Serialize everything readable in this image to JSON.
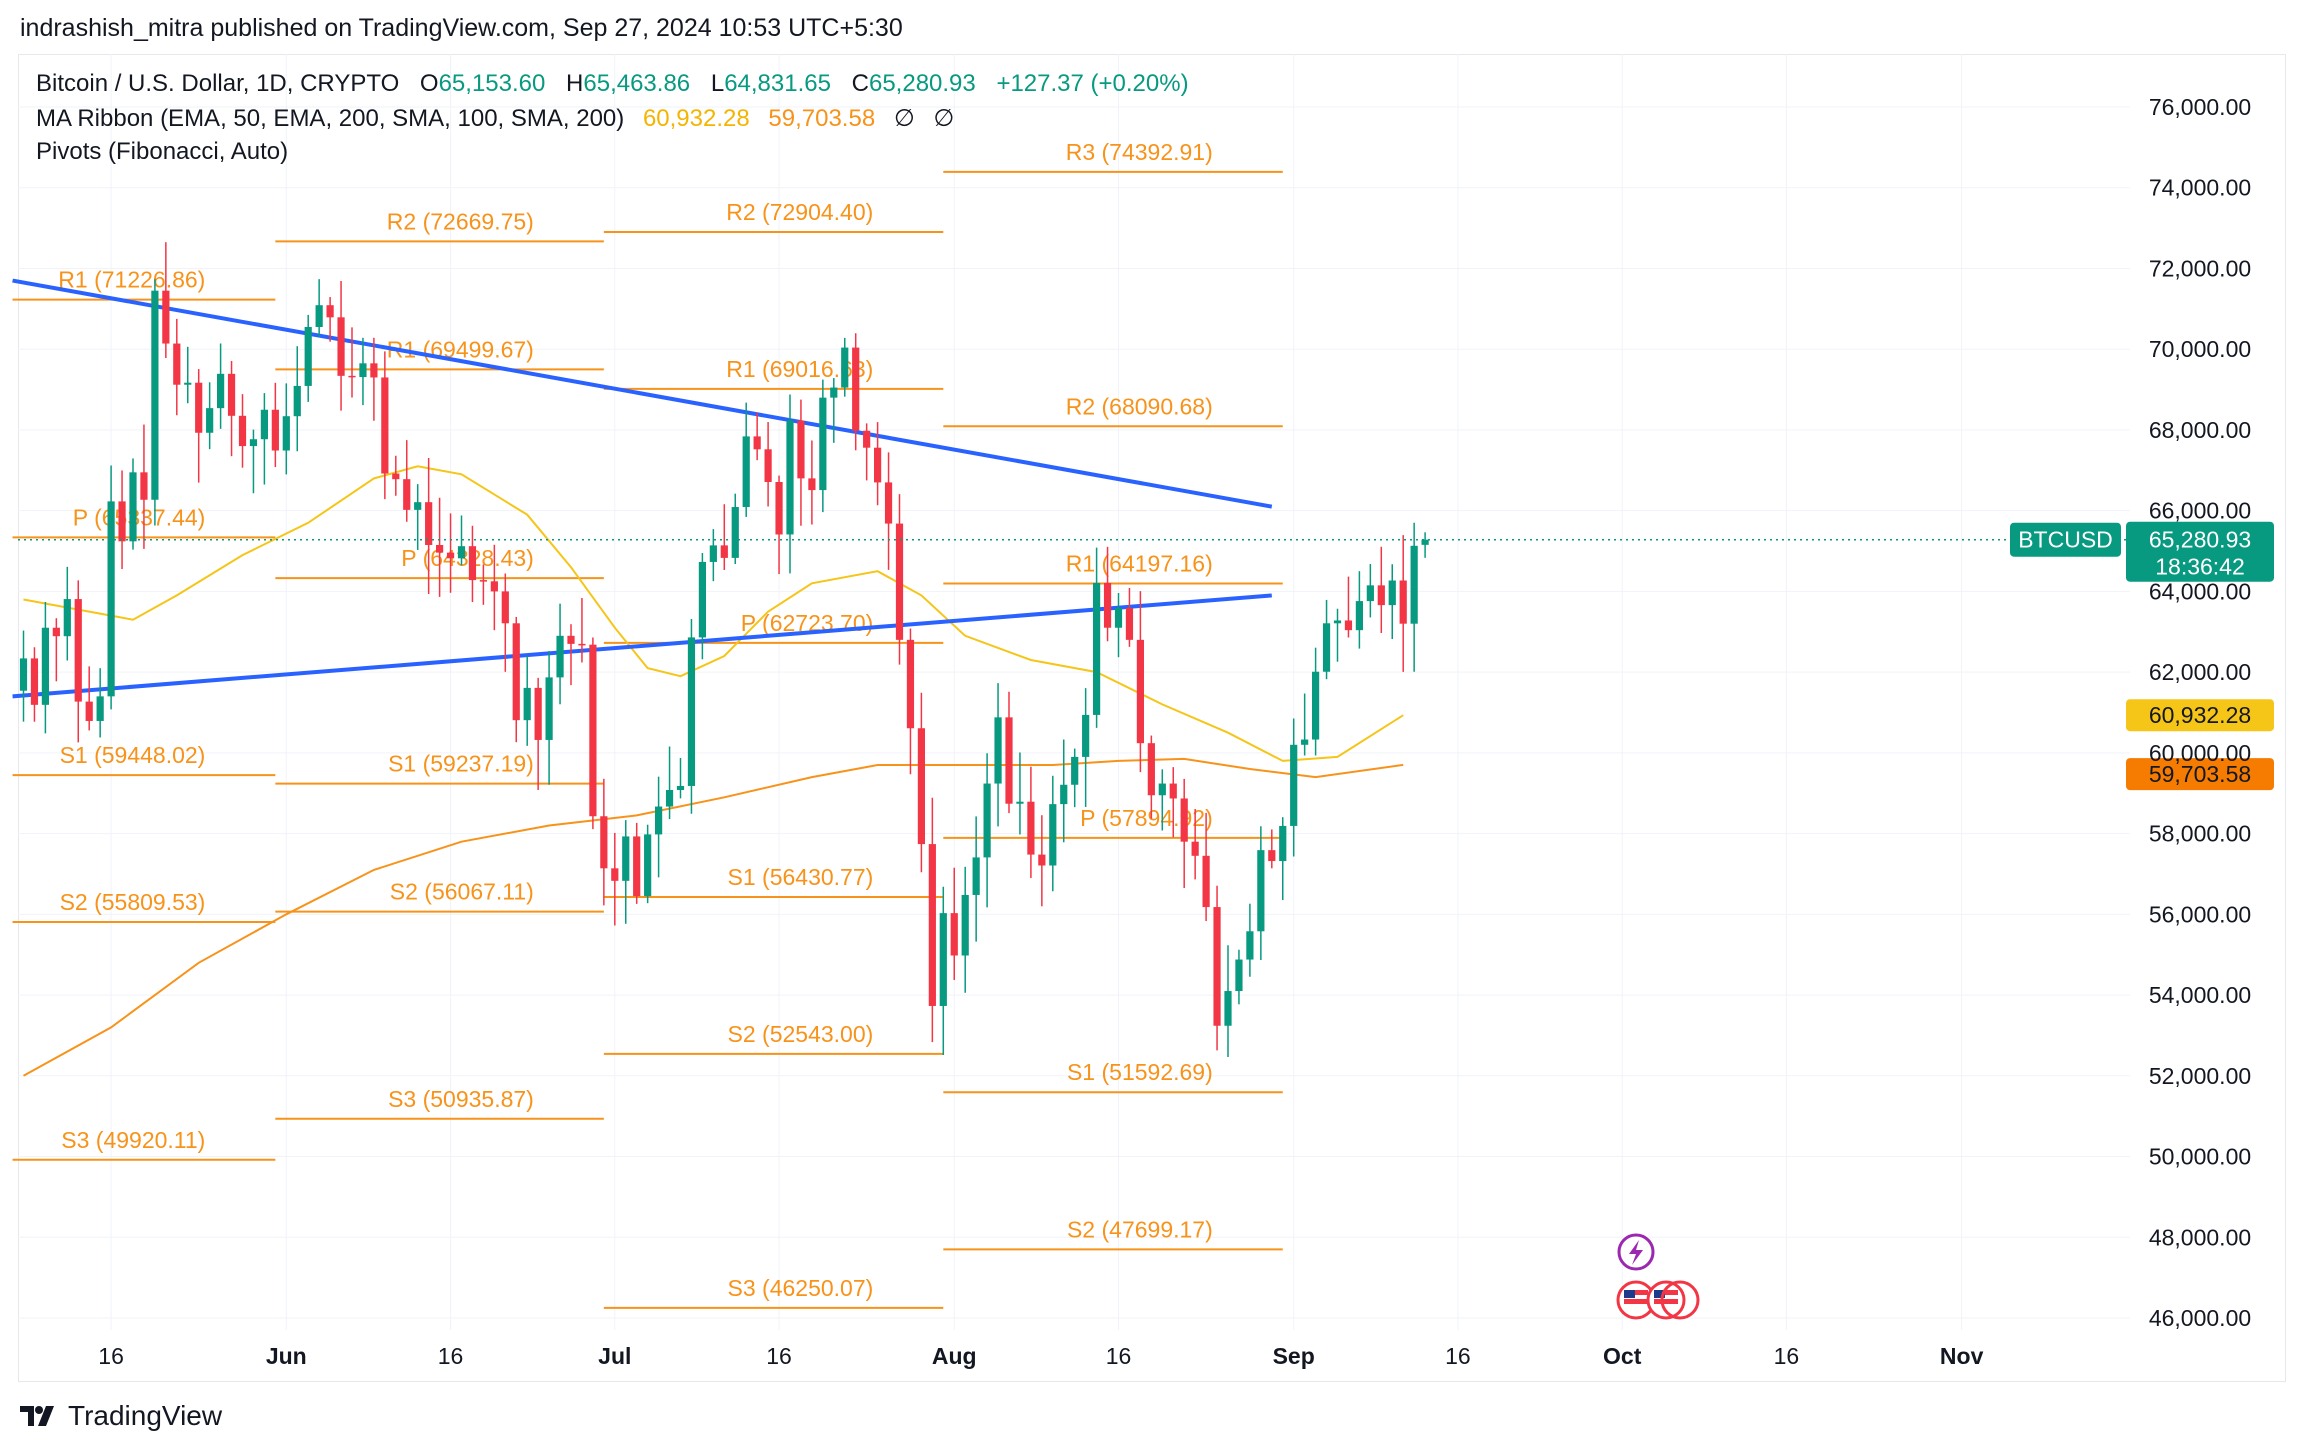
{
  "header": {
    "caption": "indrashish_mitra published on TradingView.com, Sep 27, 2024 10:53 UTC+5:30"
  },
  "legend": {
    "symbol": "Bitcoin / U.S. Dollar, 1D, CRYPTO",
    "o_label": "O",
    "o_value": "65,153.60",
    "h_label": "H",
    "h_value": "65,463.86",
    "l_label": "L",
    "l_value": "64,831.65",
    "c_label": "C",
    "c_value": "65,280.93",
    "change": "+127.37 (+0.20%)",
    "ma_title": "MA Ribbon (EMA, 50, EMA, 200, SMA, 100, SMA, 200)",
    "ma_value_1": "60,932.28",
    "ma_value_2": "59,703.58",
    "ma_hidden_1": "∅",
    "ma_hidden_2": "∅",
    "pivots_title": "Pivots (Fibonacci, Auto)"
  },
  "footer": {
    "brand": "TradingView"
  },
  "colors": {
    "up": "#089981",
    "down": "#f23645",
    "trendline": "#2962ff",
    "pivot": "#f7931a",
    "ema50": "#f5c518",
    "ema200": "#f7931a",
    "grid": "#f0f3fa"
  },
  "chart_data": {
    "type": "candlestick",
    "symbol": "BTCUSD",
    "timeframe": "1D",
    "ylim": [
      45500,
      77500
    ],
    "y_ticks": [
      "76,000.00",
      "74,000.00",
      "72,000.00",
      "70,000.00",
      "68,000.00",
      "66,000.00",
      "64,000.00",
      "62,000.00",
      "60,000.00",
      "58,000.00",
      "56,000.00",
      "54,000.00",
      "52,000.00",
      "50,000.00",
      "48,000.00",
      "46,000.00"
    ],
    "x_ticks": [
      {
        "label": "16",
        "date": "2024-05-16"
      },
      {
        "label": "Jun",
        "date": "2024-06-01"
      },
      {
        "label": "16",
        "date": "2024-06-16"
      },
      {
        "label": "Jul",
        "date": "2024-07-01"
      },
      {
        "label": "16",
        "date": "2024-07-16"
      },
      {
        "label": "Aug",
        "date": "2024-08-01"
      },
      {
        "label": "16",
        "date": "2024-08-16"
      },
      {
        "label": "Sep",
        "date": "2024-09-01"
      },
      {
        "label": "16",
        "date": "2024-09-16"
      },
      {
        "label": "Oct",
        "date": "2024-10-01"
      },
      {
        "label": "16",
        "date": "2024-10-16"
      },
      {
        "label": "Nov",
        "date": "2024-11-01"
      }
    ],
    "first_date": "2024-05-08",
    "last_price": "65,280.93",
    "last_price_label": "BTCUSD",
    "countdown": "18:36:42",
    "ma_label_1": "60,932.28",
    "ma_label_2": "59,703.58",
    "close_series": [
      62340,
      61190,
      63100,
      62890,
      63810,
      61270,
      60790,
      61400,
      66230,
      65240,
      66950,
      66270,
      71450,
      70140,
      69120,
      69170,
      67930,
      68540,
      69390,
      68350,
      67600,
      67770,
      68500,
      67490,
      68340,
      69090,
      70550,
      71090,
      70790,
      69340,
      69310,
      69650,
      69300,
      66920,
      66780,
      66020,
      66210,
      65150,
      64960,
      64820,
      65120,
      64280,
      64250,
      64000,
      63210,
      60810,
      61610,
      60320,
      61870,
      62900,
      62700,
      62680,
      58430,
      57140,
      56830,
      57930,
      56450,
      57980,
      58670,
      59080,
      59180,
      62860,
      64730,
      65140,
      64830,
      66090,
      67840,
      67520,
      66710,
      65410,
      68230,
      66800,
      66510,
      68800,
      69050,
      70040,
      67980,
      67560,
      66700,
      65680,
      62800,
      60610,
      57740,
      53730,
      56030,
      54980,
      56480,
      57410,
      59240,
      60880,
      58740,
      58790,
      57480,
      57210,
      58730,
      59210,
      59900,
      60940,
      64210,
      63100,
      63590,
      62800,
      60240,
      58950,
      59240,
      58870,
      57800,
      57450,
      56180,
      53240,
      54100,
      54880,
      55580,
      57590,
      57320,
      58190,
      60200,
      60330,
      62010,
      63210,
      63280,
      63040,
      63760,
      64150,
      63660,
      64270,
      63200,
      65130,
      65281
    ],
    "last_candle": {
      "open": 65153.6,
      "high": 65463.86,
      "low": 64831.65,
      "close": 65280.93
    },
    "ema50": [
      [
        0,
        63800
      ],
      [
        6,
        63500
      ],
      [
        10,
        63300
      ],
      [
        14,
        63900
      ],
      [
        20,
        64900
      ],
      [
        26,
        65700
      ],
      [
        32,
        66800
      ],
      [
        36,
        67100
      ],
      [
        40,
        66900
      ],
      [
        46,
        65900
      ],
      [
        50,
        64600
      ],
      [
        54,
        63100
      ],
      [
        57,
        62100
      ],
      [
        60,
        61900
      ],
      [
        64,
        62400
      ],
      [
        68,
        63500
      ],
      [
        72,
        64200
      ],
      [
        78,
        64500
      ],
      [
        82,
        63900
      ],
      [
        86,
        62900
      ],
      [
        92,
        62300
      ],
      [
        98,
        62000
      ],
      [
        104,
        61200
      ],
      [
        110,
        60500
      ],
      [
        115,
        59800
      ],
      [
        120,
        59900
      ],
      [
        126,
        60932
      ]
    ],
    "ema200": [
      [
        0,
        52000
      ],
      [
        8,
        53200
      ],
      [
        16,
        54800
      ],
      [
        24,
        56000
      ],
      [
        32,
        57100
      ],
      [
        40,
        57800
      ],
      [
        48,
        58200
      ],
      [
        56,
        58450
      ],
      [
        64,
        58900
      ],
      [
        72,
        59400
      ],
      [
        78,
        59700
      ],
      [
        86,
        59700
      ],
      [
        94,
        59700
      ],
      [
        100,
        59800
      ],
      [
        106,
        59850
      ],
      [
        112,
        59600
      ],
      [
        118,
        59400
      ],
      [
        126,
        59703
      ]
    ],
    "trendlines": [
      {
        "from": {
          "x": -1,
          "y": 71700
        },
        "to": {
          "x": 114,
          "y": 66100
        }
      },
      {
        "from": {
          "x": -1,
          "y": 61400
        },
        "to": {
          "x": 114,
          "y": 63900
        }
      }
    ],
    "pivot_periods": [
      {
        "x0": -1,
        "x1": 23,
        "levels": [
          {
            "label": "R1 (71226.86)",
            "value": 71226.86
          },
          {
            "label": "P (65337.44)",
            "value": 65337.44
          },
          {
            "label": "S1 (59448.02)",
            "value": 59448.02
          },
          {
            "label": "S2 (55809.53)",
            "value": 55809.53
          },
          {
            "label": "S3 (49920.11)",
            "value": 49920.11
          }
        ]
      },
      {
        "x0": 23,
        "x1": 53,
        "levels": [
          {
            "label": "R2 (72669.75)",
            "value": 72669.75
          },
          {
            "label": "R1 (69499.67)",
            "value": 69499.67
          },
          {
            "label": "P (64328.43)",
            "value": 64328.43
          },
          {
            "label": "S1 (59237.19)",
            "value": 59237.19
          },
          {
            "label": "S2 (56067.11)",
            "value": 56067.11
          },
          {
            "label": "S3 (50935.87)",
            "value": 50935.87
          }
        ]
      },
      {
        "x0": 53,
        "x1": 84,
        "levels": [
          {
            "label": "R2 (72904.40)",
            "value": 72904.4
          },
          {
            "label": "R1 (69016.63)",
            "value": 69016.63
          },
          {
            "label": "P (62723.70)",
            "value": 62723.7
          },
          {
            "label": "S1 (56430.77)",
            "value": 56430.77
          },
          {
            "label": "S2 (52543.00)",
            "value": 52543.0
          },
          {
            "label": "S3 (46250.07)",
            "value": 46250.07
          }
        ]
      },
      {
        "x0": 84,
        "x1": 115,
        "levels": [
          {
            "label": "R3 (74392.91)",
            "value": 74392.91
          },
          {
            "label": "R2 (68090.68)",
            "value": 68090.68
          },
          {
            "label": "R1 (64197.16)",
            "value": 64197.16
          },
          {
            "label": "P (57894.92)",
            "value": 57894.92
          },
          {
            "label": "S1 (51592.69)",
            "value": 51592.69
          },
          {
            "label": "S2 (47699.17)",
            "value": 47699.17
          }
        ]
      }
    ]
  }
}
